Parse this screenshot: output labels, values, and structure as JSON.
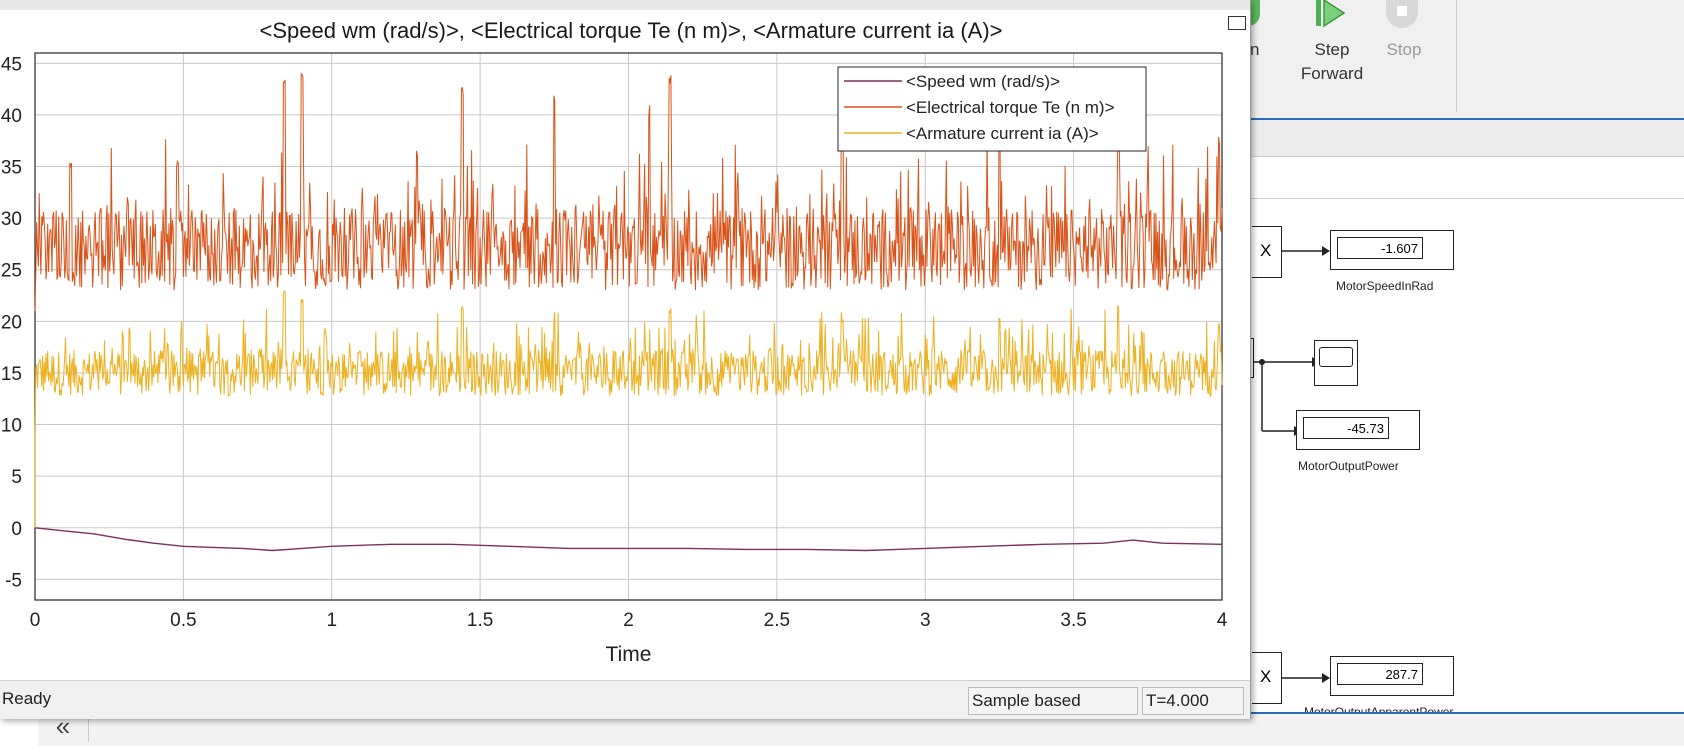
{
  "toolbar": {
    "run_partial": "n",
    "step_forward": "Step\nForward",
    "step_forward_line1": "Step",
    "step_forward_line2": "Forward",
    "stop": "Stop"
  },
  "blocks": {
    "speed_display": {
      "value": "-1.607",
      "label": "MotorSpeedInRad"
    },
    "power_display": {
      "value": "-45.73",
      "label": "MotorOutputPower"
    },
    "apparent_display": {
      "value": "287.7",
      "label": "MotorOutputApparentPower"
    },
    "gain_symbol": "X"
  },
  "scope": {
    "status": "Ready",
    "sample_mode": "Sample based",
    "time": "T=4.000"
  },
  "chart_data": {
    "type": "line",
    "title": "<Speed wm (rad/s)>, <Electrical torque Te (n m)>, <Armature current ia (A)>",
    "xlabel": "Time",
    "ylabel": "",
    "xlim": [
      0,
      4
    ],
    "ylim": [
      -7,
      46
    ],
    "xticks": [
      0,
      0.5,
      1,
      1.5,
      2,
      2.5,
      3,
      3.5,
      4
    ],
    "xtick_labels": [
      "0",
      "0.5",
      "1",
      "1.5",
      "2",
      "2.5",
      "3",
      "3.5",
      "4"
    ],
    "yticks": [
      -5,
      0,
      5,
      10,
      15,
      20,
      25,
      30,
      35,
      40,
      45
    ],
    "ytick_labels": [
      "-5",
      "0",
      "5",
      "10",
      "15",
      "20",
      "25",
      "30",
      "35",
      "40",
      "45"
    ],
    "grid": true,
    "legend_position": "top-right",
    "series": [
      {
        "name": "<Speed wm (rad/s)>",
        "color": "#7e2f5e",
        "x": [
          0,
          0.1,
          0.2,
          0.3,
          0.4,
          0.5,
          0.6,
          0.7,
          0.8,
          0.9,
          1.0,
          1.2,
          1.4,
          1.6,
          1.8,
          2.0,
          2.2,
          2.4,
          2.6,
          2.8,
          3.0,
          3.2,
          3.4,
          3.6,
          3.7,
          3.8,
          4.0
        ],
        "y": [
          0,
          -0.3,
          -0.6,
          -1.1,
          -1.5,
          -1.8,
          -1.9,
          -2.0,
          -2.2,
          -2.0,
          -1.8,
          -1.6,
          -1.6,
          -1.8,
          -2.0,
          -2.0,
          -2.0,
          -2.1,
          -2.1,
          -2.2,
          -2.0,
          -1.8,
          -1.6,
          -1.5,
          -1.2,
          -1.5,
          -1.6
        ]
      },
      {
        "name": "<Electrical torque Te (n m)>",
        "color": "#d95319",
        "mean": 27,
        "peaks": [
          [
            0.12,
            36
          ],
          [
            0.48,
            36
          ],
          [
            0.84,
            44
          ],
          [
            0.9,
            44
          ],
          [
            1.44,
            43
          ],
          [
            1.75,
            42
          ],
          [
            2.07,
            41
          ],
          [
            2.14,
            44
          ],
          [
            2.72,
            40
          ],
          [
            3.25,
            40
          ],
          [
            3.65,
            38
          ],
          [
            3.99,
            38
          ]
        ]
      },
      {
        "name": "<Armature current ia (A)>",
        "color": "#edb120",
        "mean": 15,
        "peaks": [
          [
            0.84,
            23
          ],
          [
            0.9,
            23
          ],
          [
            1.44,
            22
          ],
          [
            1.75,
            21
          ],
          [
            2.14,
            22
          ],
          [
            2.72,
            21
          ],
          [
            3.25,
            21
          ],
          [
            3.65,
            22
          ],
          [
            3.99,
            20
          ]
        ]
      }
    ]
  }
}
